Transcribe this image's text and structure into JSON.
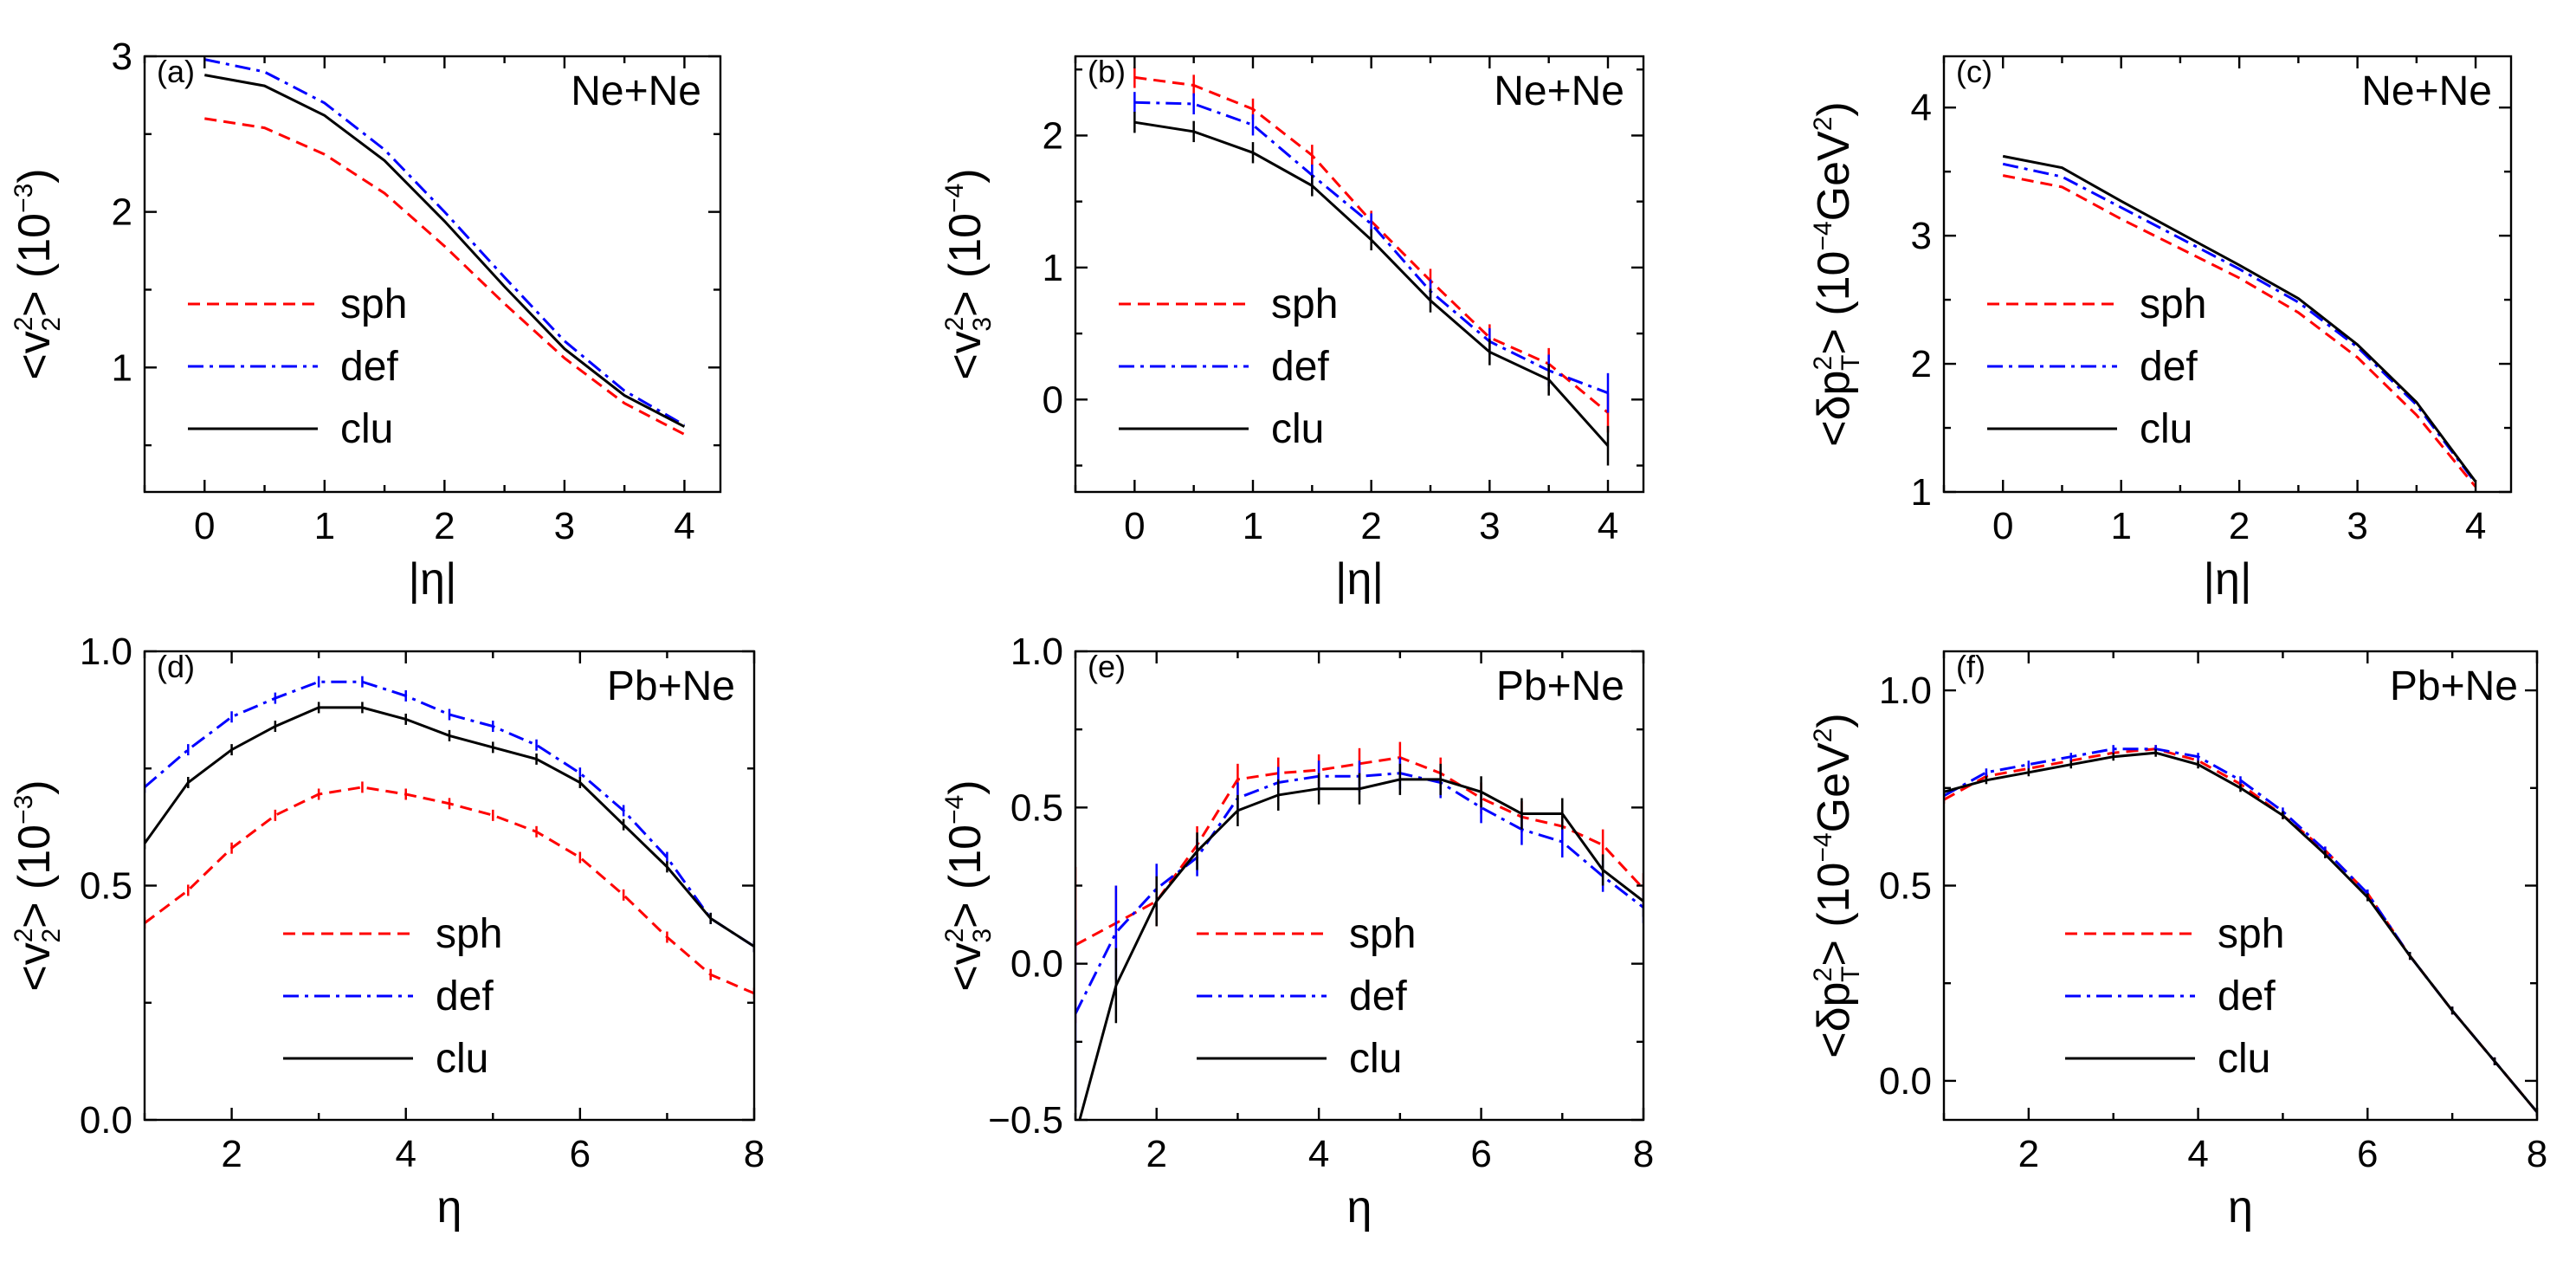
{
  "colors": {
    "sph": "#ff0000",
    "def": "#0000ff",
    "clu": "#000000"
  },
  "legend": [
    {
      "key": "sph",
      "label": "sph"
    },
    {
      "key": "def",
      "label": "def"
    },
    {
      "key": "clu",
      "label": "clu"
    }
  ],
  "chart_data": [
    {
      "id": "a",
      "type": "line",
      "tag": "(a)",
      "title": "Ne+Ne",
      "xlabel": "|η|",
      "ylabel": "<v22> (10-3)",
      "xlim": [
        -0.5,
        4.3
      ],
      "ylim": [
        0.2,
        3.0
      ],
      "xticks": [
        0,
        1,
        2,
        3,
        4
      ],
      "yticks": [
        1,
        2,
        3
      ],
      "xticklabels": [
        "0",
        "1",
        "2",
        "3",
        "4"
      ],
      "yticklabels": [
        "1",
        "2",
        "3"
      ],
      "x": [
        0,
        0.5,
        1,
        1.5,
        2,
        2.5,
        3,
        3.5,
        4
      ],
      "series": [
        {
          "name": "sph",
          "values": [
            2.6,
            2.54,
            2.37,
            2.12,
            1.78,
            1.41,
            1.06,
            0.77,
            0.57
          ],
          "err": [
            0,
            0,
            0,
            0,
            0,
            0,
            0,
            0,
            0
          ]
        },
        {
          "name": "def",
          "values": [
            2.98,
            2.9,
            2.7,
            2.4,
            2.0,
            1.58,
            1.17,
            0.85,
            0.63
          ],
          "err": [
            0,
            0,
            0,
            0,
            0,
            0,
            0,
            0,
            0
          ]
        },
        {
          "name": "clu",
          "values": [
            2.88,
            2.81,
            2.62,
            2.33,
            1.94,
            1.52,
            1.12,
            0.82,
            0.62
          ],
          "err": [
            0,
            0,
            0,
            0,
            0,
            0,
            0,
            0,
            0
          ]
        }
      ]
    },
    {
      "id": "b",
      "type": "line",
      "tag": "(b)",
      "title": "Ne+Ne",
      "xlabel": "|η|",
      "ylabel": "<v32> (10-4)",
      "xlim": [
        -0.5,
        4.3
      ],
      "ylim": [
        -0.7,
        2.6
      ],
      "xticks": [
        0,
        1,
        2,
        3,
        4
      ],
      "yticks": [
        0,
        1,
        2
      ],
      "xticklabels": [
        "0",
        "1",
        "2",
        "3",
        "4"
      ],
      "yticklabels": [
        "0",
        "1",
        "2"
      ],
      "x": [
        0,
        0.5,
        1,
        1.5,
        2,
        2.5,
        3,
        3.5,
        4
      ],
      "series": [
        {
          "name": "sph",
          "values": [
            2.44,
            2.38,
            2.2,
            1.85,
            1.35,
            0.9,
            0.47,
            0.27,
            -0.1
          ],
          "err": [
            0.08,
            0.08,
            0.08,
            0.08,
            0.08,
            0.09,
            0.1,
            0.12,
            0.15
          ]
        },
        {
          "name": "def",
          "values": [
            2.25,
            2.24,
            2.08,
            1.7,
            1.33,
            0.82,
            0.44,
            0.22,
            0.05
          ],
          "err": [
            0.08,
            0.08,
            0.08,
            0.08,
            0.08,
            0.09,
            0.1,
            0.12,
            0.15
          ]
        },
        {
          "name": "clu",
          "values": [
            2.1,
            2.03,
            1.87,
            1.62,
            1.21,
            0.75,
            0.36,
            0.15,
            -0.35
          ],
          "err": [
            0.08,
            0.08,
            0.08,
            0.08,
            0.08,
            0.09,
            0.1,
            0.12,
            0.15
          ]
        }
      ]
    },
    {
      "id": "c",
      "type": "line",
      "tag": "(c)",
      "title": "Ne+Ne",
      "xlabel": "|η|",
      "ylabel": "<δpT2> (10-4GeV2)",
      "xlim": [
        -0.5,
        4.3
      ],
      "ylim": [
        1.0,
        4.4
      ],
      "xticks": [
        0,
        1,
        2,
        3,
        4
      ],
      "yticks": [
        1,
        2,
        3,
        4
      ],
      "xticklabels": [
        "0",
        "1",
        "2",
        "3",
        "4"
      ],
      "yticklabels": [
        "1",
        "2",
        "3",
        "4"
      ],
      "x": [
        0,
        0.5,
        1,
        1.5,
        2,
        2.5,
        3,
        3.5,
        4
      ],
      "series": [
        {
          "name": "sph",
          "values": [
            3.47,
            3.38,
            3.13,
            2.9,
            2.67,
            2.4,
            2.05,
            1.6,
            1.04
          ],
          "err": [
            0,
            0,
            0,
            0,
            0,
            0,
            0,
            0,
            0
          ]
        },
        {
          "name": "def",
          "values": [
            3.56,
            3.46,
            3.22,
            2.98,
            2.74,
            2.48,
            2.13,
            1.68,
            1.07
          ],
          "err": [
            0,
            0,
            0,
            0,
            0,
            0,
            0,
            0,
            0
          ]
        },
        {
          "name": "clu",
          "values": [
            3.62,
            3.53,
            3.27,
            3.02,
            2.77,
            2.51,
            2.15,
            1.7,
            1.08
          ],
          "err": [
            0,
            0,
            0,
            0,
            0,
            0,
            0,
            0,
            0
          ]
        }
      ]
    },
    {
      "id": "d",
      "type": "line",
      "tag": "(d)",
      "title": "Pb+Ne",
      "xlabel": "η",
      "ylabel": "<v22> (10-3)",
      "xlim": [
        1,
        8
      ],
      "ylim": [
        0,
        1
      ],
      "xticks": [
        2,
        4,
        6,
        8
      ],
      "yticks": [
        0,
        0.5,
        1.0
      ],
      "xticklabels": [
        "2",
        "4",
        "6",
        "8"
      ],
      "yticklabels": [
        "0.0",
        "0.5",
        "1.0"
      ],
      "x": [
        1,
        1.5,
        2,
        2.5,
        3,
        3.5,
        4,
        4.5,
        5,
        5.5,
        6,
        6.5,
        7,
        7.5,
        8
      ],
      "series": [
        {
          "name": "sph",
          "values": [
            0.42,
            0.49,
            0.58,
            0.65,
            0.695,
            0.71,
            0.695,
            0.675,
            0.65,
            0.615,
            0.56,
            0.48,
            0.39,
            0.31,
            0.27
          ],
          "err": [
            0.012,
            0.012,
            0.012,
            0.012,
            0.012,
            0.012,
            0.012,
            0.012,
            0.012,
            0.012,
            0.012,
            0.012,
            0.012,
            0.012,
            0.012
          ]
        },
        {
          "name": "def",
          "values": [
            0.71,
            0.79,
            0.86,
            0.9,
            0.935,
            0.935,
            0.905,
            0.865,
            0.84,
            0.8,
            0.74,
            0.66,
            0.56,
            0.43,
            0.37
          ],
          "err": [
            0.012,
            0.012,
            0.012,
            0.012,
            0.012,
            0.012,
            0.012,
            0.012,
            0.012,
            0.012,
            0.012,
            0.012,
            0.012,
            0.012,
            0.012
          ]
        },
        {
          "name": "clu",
          "values": [
            0.59,
            0.72,
            0.79,
            0.84,
            0.88,
            0.88,
            0.855,
            0.82,
            0.795,
            0.77,
            0.72,
            0.63,
            0.54,
            0.43,
            0.37
          ],
          "err": [
            0.012,
            0.012,
            0.012,
            0.012,
            0.012,
            0.012,
            0.012,
            0.012,
            0.012,
            0.012,
            0.012,
            0.012,
            0.012,
            0.012,
            0.012
          ]
        }
      ]
    },
    {
      "id": "e",
      "type": "line",
      "tag": "(e)",
      "title": "Pb+Ne",
      "xlabel": "η",
      "ylabel": "<v32> (10-4)",
      "xlim": [
        1,
        8
      ],
      "ylim": [
        -0.5,
        1.0
      ],
      "xticks": [
        2,
        4,
        6,
        8
      ],
      "yticks": [
        -0.5,
        0,
        0.5,
        1.0
      ],
      "xticklabels": [
        "2",
        "4",
        "6",
        "8"
      ],
      "yticklabels": [
        "−0.5",
        "0.0",
        "0.5",
        "1.0"
      ],
      "x": [
        1,
        1.5,
        2,
        2.5,
        3,
        3.5,
        4,
        4.5,
        5,
        5.5,
        6,
        6.5,
        7,
        7.5,
        8
      ],
      "series": [
        {
          "name": "sph",
          "values": [
            0.06,
            0.13,
            0.2,
            0.38,
            0.59,
            0.61,
            0.62,
            0.64,
            0.66,
            0.61,
            0.53,
            0.47,
            0.44,
            0.38,
            0.24
          ],
          "err": [
            0.25,
            0.12,
            0.08,
            0.06,
            0.05,
            0.05,
            0.05,
            0.05,
            0.05,
            0.05,
            0.05,
            0.05,
            0.05,
            0.05,
            0.05
          ]
        },
        {
          "name": "def",
          "values": [
            -0.16,
            0.1,
            0.24,
            0.34,
            0.53,
            0.58,
            0.6,
            0.6,
            0.61,
            0.58,
            0.5,
            0.43,
            0.39,
            0.28,
            0.18
          ],
          "err": [
            0.3,
            0.15,
            0.08,
            0.06,
            0.05,
            0.05,
            0.05,
            0.05,
            0.05,
            0.05,
            0.05,
            0.05,
            0.05,
            0.05,
            0.05
          ]
        },
        {
          "name": "clu",
          "values": [
            -0.55,
            -0.07,
            0.2,
            0.36,
            0.49,
            0.54,
            0.56,
            0.56,
            0.59,
            0.59,
            0.55,
            0.48,
            0.48,
            0.3,
            0.2
          ],
          "err": [
            0.3,
            0.12,
            0.08,
            0.06,
            0.05,
            0.05,
            0.05,
            0.05,
            0.05,
            0.05,
            0.05,
            0.05,
            0.05,
            0.05,
            0.05
          ]
        }
      ]
    },
    {
      "id": "f",
      "type": "line",
      "tag": "(f)",
      "title": "Pb+Ne",
      "xlabel": "η",
      "ylabel": "<δpT2> (10-4GeV2)",
      "xlim": [
        1,
        8
      ],
      "ylim": [
        -0.1,
        1.1
      ],
      "xticks": [
        2,
        4,
        6,
        8
      ],
      "yticks": [
        0,
        0.5,
        1.0
      ],
      "xticklabels": [
        "2",
        "4",
        "6",
        "8"
      ],
      "yticklabels": [
        "0.0",
        "0.5",
        "1.0"
      ],
      "x": [
        1,
        1.5,
        2,
        2.5,
        3,
        3.5,
        4,
        4.5,
        5,
        5.5,
        6,
        6.5,
        7,
        7.5,
        8
      ],
      "series": [
        {
          "name": "sph",
          "values": [
            0.72,
            0.78,
            0.8,
            0.82,
            0.84,
            0.85,
            0.82,
            0.76,
            0.68,
            0.59,
            0.48,
            0.32,
            0.18,
            0.05,
            -0.08
          ],
          "err": [
            0.01,
            0.01,
            0.01,
            0.01,
            0.01,
            0.01,
            0.01,
            0.01,
            0.01,
            0.01,
            0.01,
            0.01,
            0.01,
            0.01,
            0.01
          ]
        },
        {
          "name": "def",
          "values": [
            0.73,
            0.79,
            0.81,
            0.83,
            0.85,
            0.85,
            0.83,
            0.77,
            0.69,
            0.59,
            0.48,
            0.32,
            0.18,
            0.05,
            -0.08
          ],
          "err": [
            0.01,
            0.01,
            0.01,
            0.01,
            0.01,
            0.01,
            0.01,
            0.01,
            0.01,
            0.01,
            0.01,
            0.01,
            0.01,
            0.01,
            0.01
          ]
        },
        {
          "name": "clu",
          "values": [
            0.74,
            0.77,
            0.79,
            0.81,
            0.83,
            0.84,
            0.81,
            0.75,
            0.68,
            0.58,
            0.47,
            0.32,
            0.18,
            0.05,
            -0.08
          ],
          "err": [
            0.01,
            0.01,
            0.01,
            0.01,
            0.01,
            0.01,
            0.01,
            0.01,
            0.01,
            0.01,
            0.01,
            0.01,
            0.01,
            0.01,
            0.01
          ]
        }
      ]
    }
  ]
}
